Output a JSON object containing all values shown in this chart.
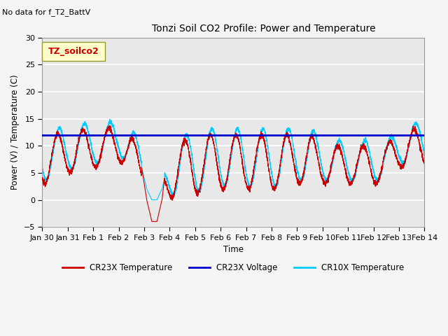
{
  "title": "Tonzi Soil CO2 Profile: Power and Temperature",
  "subtitle": "No data for f_T2_BattV",
  "ylabel": "Power (V) / Temperature (C)",
  "xlabel": "Time",
  "ylim": [
    -5,
    30
  ],
  "yticks": [
    -5,
    0,
    5,
    10,
    15,
    20,
    25,
    30
  ],
  "legend_label": "TZ_soilco2",
  "legend_box_color": "#ffffcc",
  "legend_box_edge": "#aaaaaa",
  "cr23x_color": "#cc0000",
  "cr10x_color": "#00ccff",
  "voltage_color": "#0000cc",
  "voltage_value": 12.0,
  "plot_bg_color": "#e8e8e8",
  "grid_color": "#ffffff",
  "fig_bg_color": "#f5f5f5"
}
